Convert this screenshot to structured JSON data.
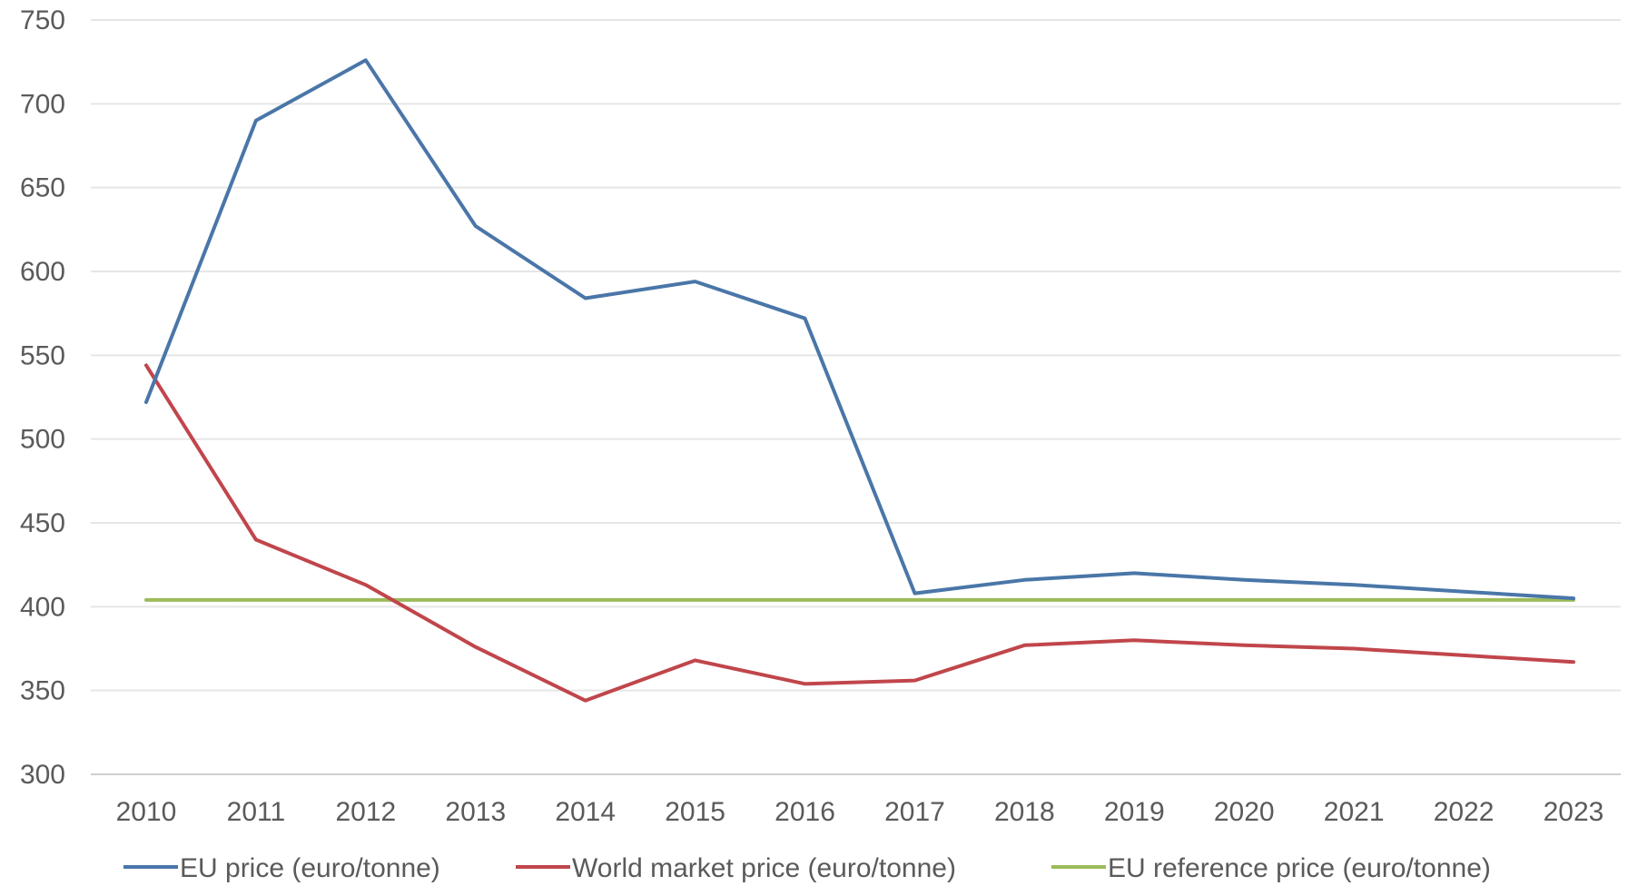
{
  "chart_data": {
    "type": "line",
    "categories": [
      "2010",
      "2011",
      "2012",
      "2013",
      "2014",
      "2015",
      "2016",
      "2017",
      "2018",
      "2019",
      "2020",
      "2021",
      "2022",
      "2023"
    ],
    "ylim": [
      300,
      750
    ],
    "yticks": [
      300,
      350,
      400,
      450,
      500,
      550,
      600,
      650,
      700,
      750
    ],
    "grid": true,
    "legend_position": "bottom",
    "title": "",
    "xlabel": "",
    "ylabel": "",
    "series": [
      {
        "name": "EU price (euro/tonne)",
        "color": "#4a76a8",
        "values": [
          522,
          690,
          726,
          627,
          584,
          594,
          572,
          408,
          416,
          420,
          416,
          413,
          409,
          405
        ]
      },
      {
        "name": "World market price (euro/tonne)",
        "color": "#c0464b",
        "values": [
          544,
          440,
          413,
          376,
          344,
          368,
          354,
          356,
          377,
          380,
          377,
          375,
          371,
          367
        ]
      },
      {
        "name": "EU reference price (euro/tonne)",
        "color": "#9bbb59",
        "values": [
          404,
          404,
          404,
          404,
          404,
          404,
          404,
          404,
          404,
          404,
          404,
          404,
          404,
          404
        ]
      }
    ]
  }
}
